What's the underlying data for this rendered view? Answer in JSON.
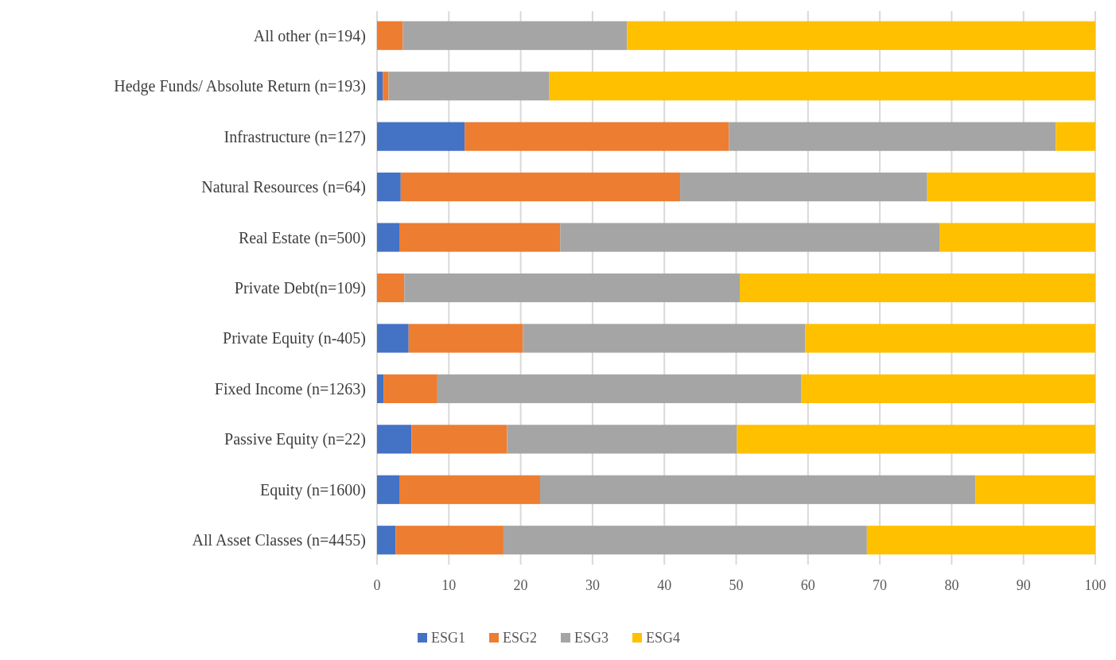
{
  "chart_data": {
    "type": "bar",
    "orientation": "horizontal",
    "stacked": true,
    "categories": [
      "All other (n=194)",
      "Hedge Funds/ Absolute Return (n=193)",
      "Infrastructure (n=127)",
      "Natural Resources (n=64)",
      "Real Estate (n=500)",
      "Private Debt(n=109)",
      "Private Equity (n-405)",
      "Fixed Income (n=1263)",
      "Passive Equity (n=22)",
      "Equity (n=1600)",
      "All Asset Classes (n=4455)"
    ],
    "series": [
      {
        "name": "ESG1",
        "color": "#4472c4",
        "values": [
          0,
          0.8,
          12.2,
          3.3,
          3.1,
          0,
          4.4,
          0.9,
          4.8,
          3.1,
          2.6
        ]
      },
      {
        "name": "ESG2",
        "color": "#ed7d31",
        "values": [
          3.6,
          0.8,
          36.8,
          38.9,
          22.4,
          3.8,
          15.9,
          7.5,
          13.3,
          19.6,
          15
        ]
      },
      {
        "name": "ESG3",
        "color": "#a5a5a5",
        "values": [
          31.2,
          22.4,
          45.5,
          34.4,
          52.8,
          46.7,
          39.3,
          50.7,
          32,
          60.6,
          50.6
        ]
      },
      {
        "name": "ESG4",
        "color": "#ffc000",
        "values": [
          65.2,
          76,
          5.5,
          23.4,
          21.7,
          49.5,
          40.4,
          40.9,
          49.9,
          16.7,
          31.8
        ]
      }
    ],
    "xlim": [
      0,
      100
    ],
    "xticks": [
      0,
      10,
      20,
      30,
      40,
      50,
      60,
      70,
      80,
      90,
      100
    ],
    "grid": "x",
    "legend": "bottom"
  }
}
